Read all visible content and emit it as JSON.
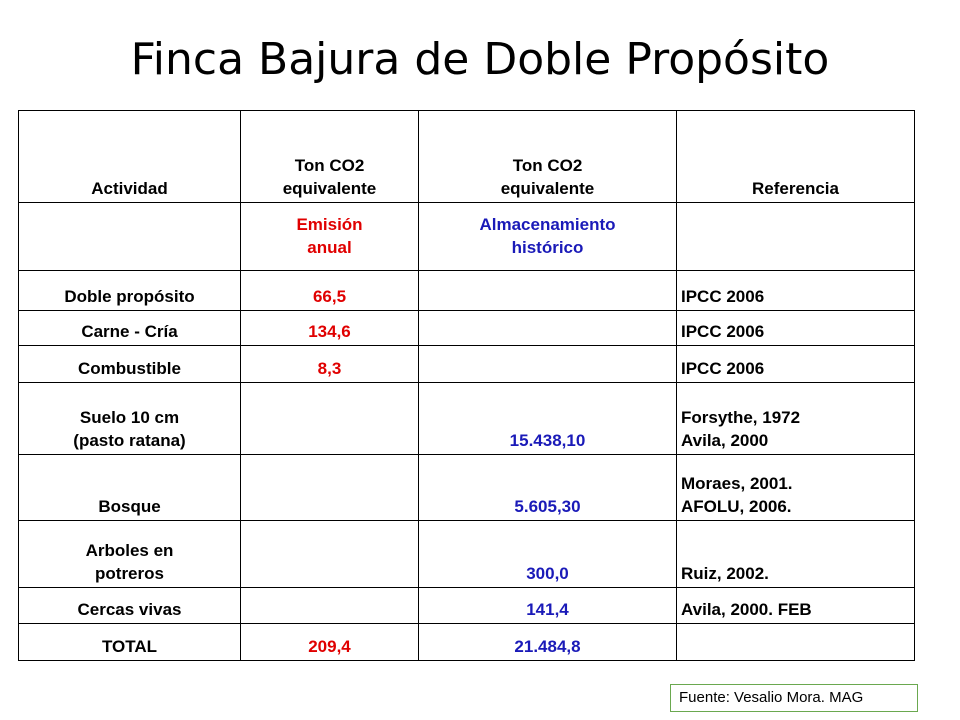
{
  "title": "Finca Bajura de Doble Propósito",
  "header": {
    "actividad": "Actividad",
    "col_emision": [
      "Ton CO2",
      "equivalente"
    ],
    "col_almacen": [
      "Ton CO2",
      "equivalente"
    ],
    "referencia": "Referencia"
  },
  "subheader": {
    "emision": [
      "Emisión",
      "anual"
    ],
    "almacen": [
      "Almacenamiento",
      "histórico"
    ]
  },
  "rows": [
    {
      "actividad": [
        "Doble propósito"
      ],
      "emision": "66,5",
      "almacen": "",
      "referencia": [
        "IPCC 2006"
      ]
    },
    {
      "actividad": [
        "Carne - Cría"
      ],
      "emision": "134,6",
      "almacen": "",
      "referencia": [
        "IPCC 2006"
      ]
    },
    {
      "actividad": [
        "Combustible"
      ],
      "emision": "8,3",
      "almacen": "",
      "referencia": [
        "IPCC 2006"
      ]
    },
    {
      "actividad": [
        "Suelo 10 cm",
        "(pasto ratana)"
      ],
      "emision": "",
      "almacen": "15.438,10",
      "referencia": [
        "Forsythe, 1972",
        "Avila, 2000"
      ]
    },
    {
      "actividad": [
        "Bosque"
      ],
      "emision": "",
      "almacen": "5.605,30",
      "referencia": [
        "Moraes, 2001.",
        "AFOLU, 2006."
      ]
    },
    {
      "actividad": [
        "Arboles en",
        "potreros"
      ],
      "emision": "",
      "almacen": "300,0",
      "referencia": [
        "Ruiz, 2002."
      ]
    },
    {
      "actividad": [
        "Cercas vivas"
      ],
      "emision": "",
      "almacen": "141,4",
      "referencia": [
        "Avila, 2000. FEB"
      ]
    },
    {
      "actividad": [
        "TOTAL"
      ],
      "emision": "209,4",
      "almacen": "21.484,8",
      "referencia": [
        ""
      ]
    }
  ],
  "source": "Fuente: Vesalio Mora. MAG",
  "colors": {
    "emision": "#e00000",
    "almacen": "#1a1ab8",
    "source_border": "#6aa84f"
  }
}
